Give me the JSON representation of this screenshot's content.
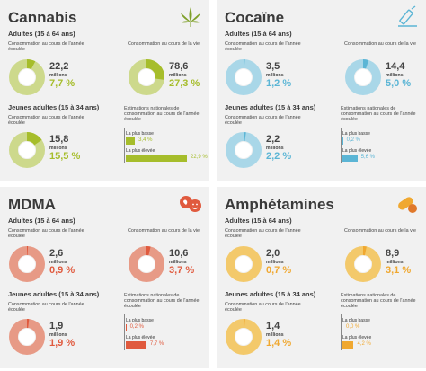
{
  "common": {
    "adults_label": "Adultes (15 à 64 ans)",
    "youth_label": "Jeunes adultes (15 à 34 ans)",
    "past_year_label": "Consommation au cours de l'année écoulée",
    "lifetime_label": "Consommation au cours de la vie",
    "national_est_label": "Estimations nationales de consommation au cours de l'année écoulée",
    "lowest_label": "La plus basse",
    "highest_label": "La plus élevée",
    "unit_label": "millions"
  },
  "panels": [
    {
      "title": "Cannabis",
      "icon": "cannabis-leaf-icon",
      "color": "#a6bd2b",
      "light": "#cdd98c",
      "adults": {
        "past_year": {
          "number": "22,2",
          "percent": "7,7 %",
          "value": 7.7
        },
        "lifetime": {
          "number": "78,6",
          "percent": "27,3 %",
          "value": 27.3
        }
      },
      "youth": {
        "past_year": {
          "number": "15,8",
          "percent": "15,5 %",
          "value": 15.5
        },
        "lowest": {
          "label": "3,4 %",
          "value": 3.4
        },
        "highest": {
          "label": "22,9 %",
          "value": 22.9
        }
      }
    },
    {
      "title": "Cocaïne",
      "icon": "syringe-icon",
      "color": "#5bb5d5",
      "light": "#a9d7e8",
      "adults": {
        "past_year": {
          "number": "3,5",
          "percent": "1,2 %",
          "value": 1.2
        },
        "lifetime": {
          "number": "14,4",
          "percent": "5,0 %",
          "value": 5.0
        }
      },
      "youth": {
        "past_year": {
          "number": "2,2",
          "percent": "2,2 %",
          "value": 2.2
        },
        "lowest": {
          "label": "0,2 %",
          "value": 0.2
        },
        "highest": {
          "label": "5,6 %",
          "value": 5.6
        }
      }
    },
    {
      "title": "MDMA",
      "icon": "pills-smiley-icon",
      "color": "#e05a3e",
      "light": "#e79a86",
      "adults": {
        "past_year": {
          "number": "2,6",
          "percent": "0,9 %",
          "value": 0.9
        },
        "lifetime": {
          "number": "10,6",
          "percent": "3,7 %",
          "value": 3.7
        }
      },
      "youth": {
        "past_year": {
          "number": "1,9",
          "percent": "1,9 %",
          "value": 1.9
        },
        "lowest": {
          "label": "0,2 %",
          "value": 0.2
        },
        "highest": {
          "label": "7,7 %",
          "value": 7.7
        }
      }
    },
    {
      "title": "Amphétamines",
      "icon": "capsule-pill-icon",
      "color": "#f0a830",
      "light": "#f3c96b",
      "adults": {
        "past_year": {
          "number": "2,0",
          "percent": "0,7 %",
          "value": 0.7
        },
        "lifetime": {
          "number": "8,9",
          "percent": "3,1 %",
          "value": 3.1
        }
      },
      "youth": {
        "past_year": {
          "number": "1,4",
          "percent": "1,4 %",
          "value": 1.4
        },
        "lowest": {
          "label": "0,0 %",
          "value": 0.0
        },
        "highest": {
          "label": "4,2 %",
          "value": 4.2
        }
      }
    }
  ]
}
